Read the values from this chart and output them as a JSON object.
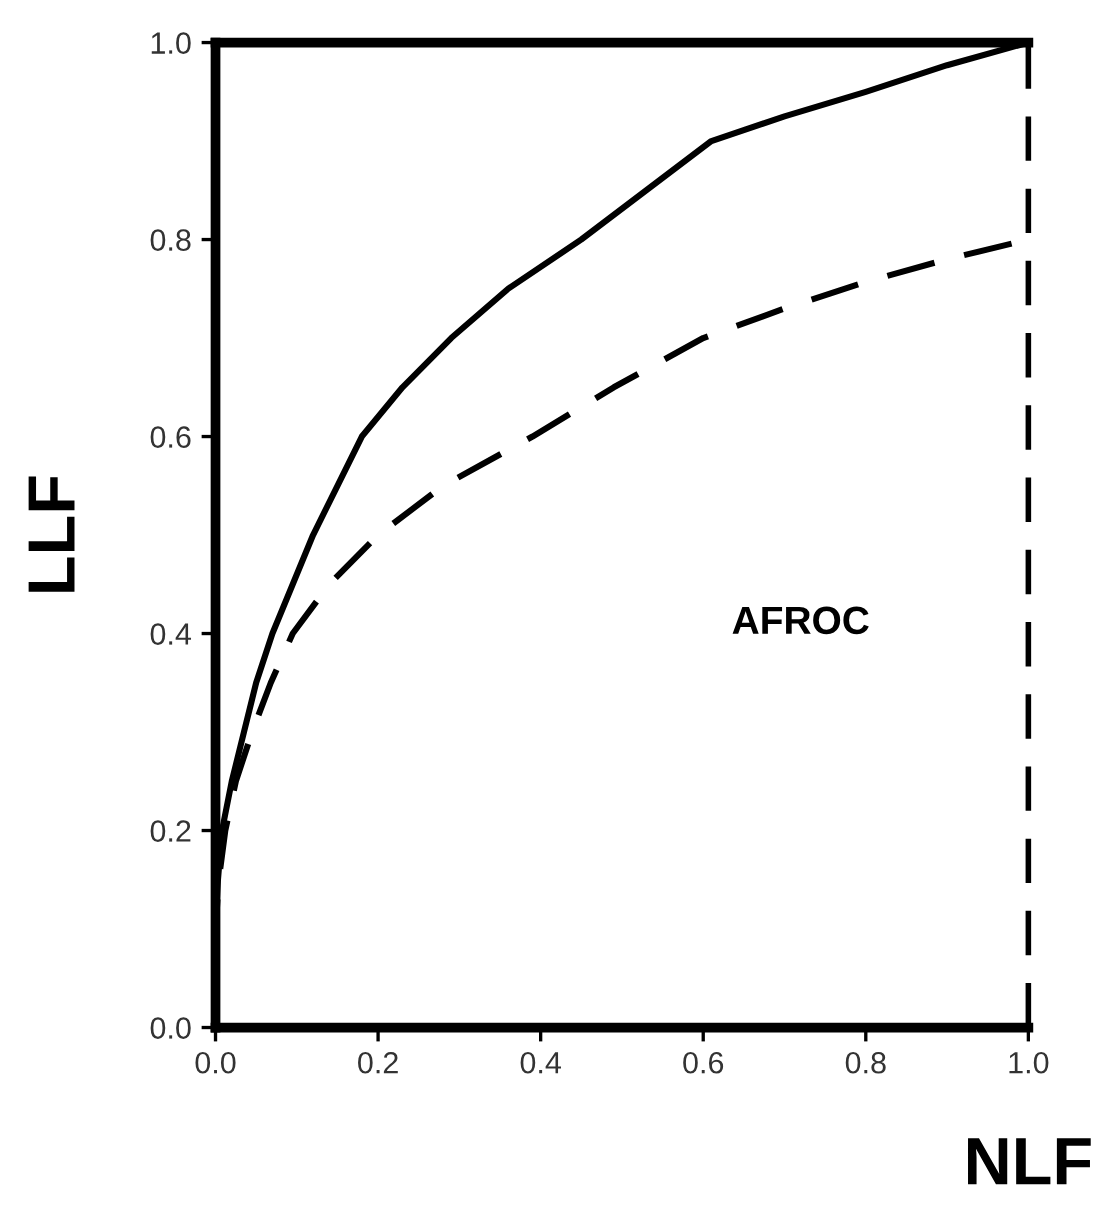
{
  "chart_data": {
    "type": "line",
    "xlabel": "NLF",
    "ylabel": "LLF",
    "annotations": [
      "AFROC"
    ],
    "xlim": [
      0,
      1.0
    ],
    "ylim": [
      0,
      1.0
    ],
    "xticks": [
      {
        "value": 0,
        "label": "0.0"
      },
      0.2,
      0.4,
      0.6,
      0.8,
      {
        "value": 1,
        "label": "1.0"
      }
    ],
    "yticks": [
      {
        "value": 0,
        "label": "0.0"
      },
      0.2,
      0.4,
      0.6,
      0.8,
      {
        "value": 1,
        "label": "1.0"
      }
    ],
    "grid": false,
    "marker": "none",
    "series": [
      {
        "color": "#000000",
        "line_style": "solid",
        "x": [
          0,
          0,
          0.003,
          0.008,
          0.02,
          0.035,
          0.05,
          0.07,
          0.095,
          0.12,
          0.15,
          0.18,
          0.23,
          0.29,
          0.36,
          0.45,
          0.53,
          0.61,
          0.7,
          0.8,
          0.9,
          1.0
        ],
        "values": [
          0,
          0.1,
          0.15,
          0.2,
          0.25,
          0.3,
          0.35,
          0.4,
          0.45,
          0.5,
          0.55,
          0.6,
          0.65,
          0.7,
          0.75,
          0.8,
          0.85,
          0.9,
          0.925,
          0.95,
          0.977,
          1.0
        ]
      },
      {
        "color": "#000000",
        "line_style": "dashed",
        "x": [
          0,
          0,
          0.004,
          0.012,
          0.025,
          0.045,
          0.068,
          0.095,
          0.14,
          0.2,
          0.28,
          0.39,
          0.49,
          0.6,
          0.7,
          0.8,
          0.9,
          1.0
        ],
        "values": [
          0,
          0.1,
          0.15,
          0.2,
          0.25,
          0.3,
          0.35,
          0.4,
          0.45,
          0.5,
          0.55,
          0.6,
          0.65,
          0.7,
          0.73,
          0.757,
          0.78,
          0.8
        ]
      }
    ],
    "ref_lines": [
      {
        "axis": "x",
        "value": 1.0,
        "color": "#000000",
        "line_style": "dashed"
      }
    ]
  }
}
